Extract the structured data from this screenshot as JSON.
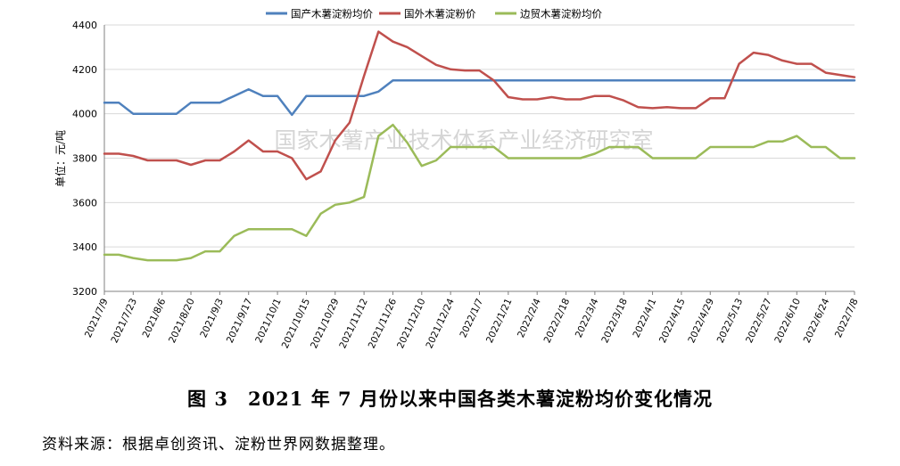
{
  "caption": "图 3　2021 年 7 月份以来中国各类木薯淀粉均价变化情况",
  "source": "资料来源：根据卓创资讯、淀粉世界网数据整理。",
  "watermark": "国家木薯产业技术体系产业经济研究室",
  "chart_data": {
    "type": "line",
    "title": "",
    "xlabel": "",
    "ylabel": "单位：元/吨",
    "ylim": [
      3200,
      4400
    ],
    "yticks": [
      3200,
      3400,
      3600,
      3800,
      4000,
      4200,
      4400
    ],
    "grid": "horizontal",
    "legend_position": "top",
    "x_tick_labels": [
      "2021/7/9",
      "2021/7/23",
      "2021/8/6",
      "2021/8/20",
      "2021/9/3",
      "2021/9/17",
      "2021/10/1",
      "2021/10/15",
      "2021/10/29",
      "2021/11/12",
      "2021/11/26",
      "2021/12/10",
      "2021/12/24",
      "2022/1/7",
      "2022/1/21",
      "2022/2/4",
      "2022/2/18",
      "2022/3/4",
      "2022/3/18",
      "2022/4/1",
      "2022/4/15",
      "2022/4/29",
      "2022/5/13",
      "2022/5/27",
      "2022/6/10",
      "2022/6/24",
      "2022/7/8"
    ],
    "x": [
      "2021/7/9",
      "2021/7/16",
      "2021/7/23",
      "2021/7/30",
      "2021/8/6",
      "2021/8/13",
      "2021/8/20",
      "2021/8/27",
      "2021/9/3",
      "2021/9/10",
      "2021/9/17",
      "2021/9/24",
      "2021/10/1",
      "2021/10/8",
      "2021/10/15",
      "2021/10/22",
      "2021/10/29",
      "2021/11/5",
      "2021/11/12",
      "2021/11/19",
      "2021/11/26",
      "2021/12/3",
      "2021/12/10",
      "2021/12/17",
      "2021/12/24",
      "2021/12/31",
      "2022/1/7",
      "2022/1/14",
      "2022/1/21",
      "2022/1/28",
      "2022/2/4",
      "2022/2/11",
      "2022/2/18",
      "2022/2/25",
      "2022/3/4",
      "2022/3/11",
      "2022/3/18",
      "2022/3/25",
      "2022/4/1",
      "2022/4/8",
      "2022/4/15",
      "2022/4/22",
      "2022/4/29",
      "2022/5/6",
      "2022/5/13",
      "2022/5/20",
      "2022/5/27",
      "2022/6/3",
      "2022/6/10",
      "2022/6/17",
      "2022/6/24",
      "2022/7/1",
      "2022/7/8"
    ],
    "series": [
      {
        "name": "国产木薯淀粉均价",
        "color": "#4F81BD",
        "values": [
          4050,
          4050,
          4000,
          4000,
          4000,
          4000,
          4050,
          4050,
          4050,
          4080,
          4110,
          4080,
          4080,
          3995,
          4080,
          4080,
          4080,
          4080,
          4080,
          4100,
          4150,
          4150,
          4150,
          4150,
          4150,
          4150,
          4150,
          4150,
          4150,
          4150,
          4150,
          4150,
          4150,
          4150,
          4150,
          4150,
          4150,
          4150,
          4150,
          4150,
          4150,
          4150,
          4150,
          4150,
          4150,
          4150,
          4150,
          4150,
          4150,
          4150,
          4150,
          4150,
          4150
        ]
      },
      {
        "name": "国外木薯淀粉价",
        "color": "#C0504D",
        "values": [
          3820,
          3820,
          3810,
          3790,
          3790,
          3790,
          3770,
          3790,
          3790,
          3830,
          3880,
          3830,
          3830,
          3800,
          3705,
          3740,
          3880,
          3960,
          4170,
          4370,
          4325,
          4300,
          4260,
          4220,
          4200,
          4195,
          4195,
          4150,
          4075,
          4065,
          4065,
          4075,
          4065,
          4065,
          4080,
          4080,
          4060,
          4030,
          4025,
          4030,
          4025,
          4025,
          4070,
          4070,
          4225,
          4275,
          4265,
          4240,
          4225,
          4225,
          4185,
          4175,
          4165
        ]
      },
      {
        "name": "边贸木薯淀粉均价",
        "color": "#9BBB59",
        "values": [
          3365,
          3365,
          3350,
          3340,
          3340,
          3340,
          3350,
          3380,
          3380,
          3450,
          3480,
          3480,
          3480,
          3480,
          3450,
          3550,
          3590,
          3600,
          3625,
          3900,
          3950,
          3870,
          3765,
          3790,
          3850,
          3850,
          3850,
          3850,
          3800,
          3800,
          3800,
          3800,
          3800,
          3800,
          3820,
          3850,
          3850,
          3850,
          3800,
          3800,
          3800,
          3800,
          3850,
          3850,
          3850,
          3850,
          3875,
          3875,
          3900,
          3850,
          3850,
          3800,
          3800
        ]
      }
    ]
  }
}
